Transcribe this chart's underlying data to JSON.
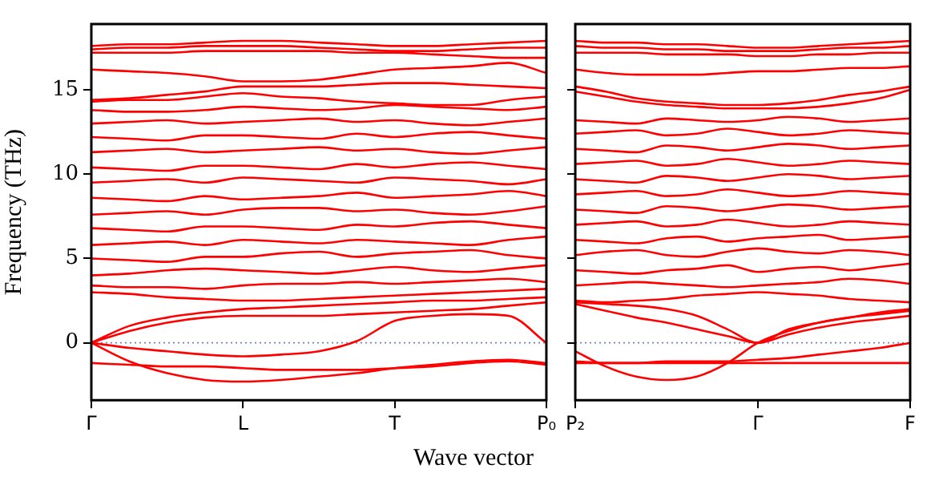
{
  "chart_data": [
    {
      "type": "line",
      "ylabel": "Frequency (THz)",
      "xlabel": "Wave vector",
      "ylim": [
        -3.4,
        18.9
      ],
      "yticks": [
        0,
        5,
        10,
        15
      ],
      "categories": [
        "Γ",
        null,
        null,
        null,
        "L",
        null,
        null,
        null,
        "T",
        null,
        null,
        null,
        "P₀"
      ],
      "grid": false,
      "legend": false,
      "marker": "none",
      "line_style": "solid",
      "ref_lines": [
        {
          "axis": "y",
          "value": 0,
          "color": "#7080c0",
          "line_style": "dotted"
        }
      ],
      "series": [
        {
          "color": "#ff0000",
          "values": [
            0,
            -1.1,
            -1.8,
            -2.2,
            -2.3,
            -2.2,
            -2.0,
            -1.8,
            -1.5,
            -1.3,
            -1.1,
            -1.0,
            -1.2
          ]
        },
        {
          "color": "#ff0000",
          "values": [
            -1.2,
            -1.3,
            -1.4,
            -1.4,
            -1.5,
            -1.6,
            -1.6,
            -1.6,
            -1.5,
            -1.4,
            -1.2,
            -1.1,
            -1.3
          ]
        },
        {
          "color": "#ff0000",
          "values": [
            0,
            -0.3,
            -0.5,
            -0.7,
            -0.8,
            -0.7,
            -0.5,
            0.1,
            1.3,
            1.6,
            1.7,
            1.6,
            0
          ]
        },
        {
          "color": "#ff0000",
          "values": [
            0,
            0.7,
            1.2,
            1.5,
            1.6,
            1.6,
            1.6,
            1.7,
            1.8,
            1.9,
            2.0,
            2.2,
            2.4
          ]
        },
        {
          "color": "#ff0000",
          "values": [
            0,
            1.0,
            1.5,
            1.8,
            2.0,
            2.1,
            2.2,
            2.3,
            2.4,
            2.5,
            2.5,
            2.6,
            2.7
          ]
        },
        {
          "color": "#ff0000",
          "values": [
            3.0,
            2.9,
            2.7,
            2.6,
            2.5,
            2.5,
            2.6,
            2.7,
            2.8,
            2.9,
            3.0,
            3.1,
            3.2
          ]
        },
        {
          "color": "#ff0000",
          "values": [
            3.4,
            3.3,
            3.3,
            3.2,
            3.4,
            3.5,
            3.5,
            3.6,
            3.5,
            3.6,
            3.7,
            3.8,
            3.6
          ]
        },
        {
          "color": "#ff0000",
          "values": [
            4.0,
            4.1,
            4.3,
            4.4,
            4.3,
            4.2,
            4.1,
            4.3,
            4.5,
            4.3,
            4.2,
            4.4,
            4.6
          ]
        },
        {
          "color": "#ff0000",
          "values": [
            5.0,
            4.9,
            4.8,
            5.1,
            5.1,
            5.3,
            5.4,
            5.1,
            5.3,
            5.4,
            5.5,
            5.2,
            5.0
          ]
        },
        {
          "color": "#ff0000",
          "values": [
            5.8,
            5.9,
            6.0,
            5.8,
            6.1,
            6.0,
            5.9,
            6.1,
            6.0,
            5.9,
            5.8,
            6.1,
            6.3
          ]
        },
        {
          "color": "#ff0000",
          "values": [
            6.8,
            6.7,
            6.6,
            6.9,
            6.9,
            6.8,
            6.7,
            7.0,
            6.9,
            7.1,
            7.2,
            7.0,
            6.8
          ]
        },
        {
          "color": "#ff0000",
          "values": [
            7.6,
            7.7,
            7.8,
            7.6,
            7.9,
            8.0,
            8.0,
            7.8,
            7.9,
            7.7,
            7.6,
            7.8,
            8.1
          ]
        },
        {
          "color": "#ff0000",
          "values": [
            8.6,
            8.5,
            8.4,
            8.7,
            8.5,
            8.6,
            8.7,
            8.9,
            8.6,
            8.7,
            8.8,
            9.0,
            8.7
          ]
        },
        {
          "color": "#ff0000",
          "values": [
            9.5,
            9.6,
            9.7,
            9.5,
            9.8,
            9.7,
            9.6,
            9.5,
            9.8,
            9.7,
            9.6,
            9.4,
            9.7
          ]
        },
        {
          "color": "#ff0000",
          "values": [
            10.4,
            10.3,
            10.2,
            10.5,
            10.5,
            10.4,
            10.3,
            10.6,
            10.4,
            10.6,
            10.7,
            10.5,
            10.3
          ]
        },
        {
          "color": "#ff0000",
          "values": [
            11.3,
            11.4,
            11.5,
            11.3,
            11.4,
            11.5,
            11.6,
            11.4,
            11.5,
            11.3,
            11.2,
            11.4,
            11.6
          ]
        },
        {
          "color": "#ff0000",
          "values": [
            12.2,
            12.1,
            12.0,
            12.3,
            12.3,
            12.2,
            12.1,
            12.4,
            12.2,
            12.4,
            12.5,
            12.3,
            12.1
          ]
        },
        {
          "color": "#ff0000",
          "values": [
            13.0,
            13.1,
            13.2,
            13.0,
            13.1,
            13.2,
            13.3,
            13.1,
            13.2,
            13.0,
            12.9,
            13.1,
            13.3
          ]
        },
        {
          "color": "#ff0000",
          "values": [
            13.8,
            13.7,
            13.7,
            13.8,
            14.0,
            13.9,
            13.8,
            13.9,
            14.1,
            14.0,
            13.9,
            13.8,
            14.0
          ]
        },
        {
          "color": "#ff0000",
          "values": [
            14.3,
            14.4,
            14.4,
            14.6,
            14.8,
            14.6,
            14.5,
            14.3,
            14.2,
            14.1,
            14.1,
            14.4,
            14.6
          ]
        },
        {
          "color": "#ff0000",
          "values": [
            14.4,
            14.5,
            14.7,
            14.9,
            15.2,
            15.2,
            15.2,
            15.3,
            15.4,
            15.4,
            15.3,
            15.2,
            15.1
          ]
        },
        {
          "color": "#ff0000",
          "values": [
            16.2,
            16.1,
            16.0,
            15.8,
            15.5,
            15.5,
            15.6,
            15.9,
            16.2,
            16.3,
            16.4,
            16.6,
            16.0
          ]
        },
        {
          "color": "#ff0000",
          "values": [
            17.2,
            17.2,
            17.2,
            17.3,
            17.3,
            17.3,
            17.3,
            17.2,
            17.2,
            17.1,
            17.0,
            16.9,
            16.9
          ]
        },
        {
          "color": "#ff0000",
          "values": [
            17.4,
            17.5,
            17.5,
            17.6,
            17.6,
            17.6,
            17.5,
            17.4,
            17.3,
            17.3,
            17.4,
            17.5,
            17.5
          ]
        },
        {
          "color": "#ff0000",
          "values": [
            17.6,
            17.7,
            17.7,
            17.8,
            17.9,
            17.9,
            17.8,
            17.7,
            17.6,
            17.6,
            17.7,
            17.8,
            17.9
          ]
        }
      ]
    },
    {
      "type": "line",
      "ylim": [
        -3.4,
        18.9
      ],
      "yticks": [
        0,
        5,
        10,
        15
      ],
      "tick_labels": "x",
      "categories": [
        "P₂",
        null,
        null,
        null,
        null,
        null,
        "Γ",
        null,
        null,
        null,
        null,
        "F"
      ],
      "grid": false,
      "legend": false,
      "marker": "none",
      "line_style": "solid",
      "ref_lines": [
        {
          "axis": "y",
          "value": 0,
          "color": "#7080c0",
          "line_style": "dotted"
        }
      ],
      "series": [
        {
          "color": "#ff0000",
          "values": [
            -0.5,
            -1.4,
            -2.0,
            -2.2,
            -2.0,
            -1.2,
            0,
            0.7,
            1.2,
            1.5,
            1.8,
            2.0
          ]
        },
        {
          "color": "#ff0000",
          "values": [
            -1.1,
            -1.2,
            -1.2,
            -1.2,
            -1.2,
            -1.2,
            -1.2,
            -1.2,
            -1.2,
            -1.2,
            -1.2,
            -1.2
          ]
        },
        {
          "color": "#ff0000",
          "values": [
            -1.2,
            -1.2,
            -1.2,
            -1.1,
            -1.1,
            -1.1,
            -1.0,
            -0.9,
            -0.7,
            -0.5,
            -0.3,
            0
          ]
        },
        {
          "color": "#ff0000",
          "values": [
            2.3,
            1.9,
            1.5,
            1.2,
            0.8,
            0.4,
            0,
            0.5,
            0.9,
            1.2,
            1.4,
            1.6
          ]
        },
        {
          "color": "#ff0000",
          "values": [
            2.4,
            2.3,
            2.2,
            2.0,
            1.6,
            0.8,
            0,
            0.8,
            1.2,
            1.5,
            1.7,
            1.9
          ]
        },
        {
          "color": "#ff0000",
          "values": [
            2.5,
            2.4,
            2.5,
            2.6,
            2.8,
            2.9,
            3.0,
            2.9,
            2.8,
            2.6,
            2.5,
            2.4
          ]
        },
        {
          "color": "#ff0000",
          "values": [
            3.4,
            3.5,
            3.6,
            3.5,
            3.4,
            3.3,
            3.4,
            3.5,
            3.6,
            3.8,
            3.7,
            3.5
          ]
        },
        {
          "color": "#ff0000",
          "values": [
            4.3,
            4.2,
            4.1,
            4.3,
            4.4,
            4.6,
            4.2,
            4.4,
            4.5,
            4.3,
            4.5,
            4.7
          ]
        },
        {
          "color": "#ff0000",
          "values": [
            5.2,
            5.4,
            5.5,
            5.2,
            5.1,
            5.4,
            5.6,
            5.4,
            5.3,
            5.5,
            5.4,
            5.2
          ]
        },
        {
          "color": "#ff0000",
          "values": [
            6.1,
            6.0,
            5.9,
            6.2,
            6.3,
            6.0,
            6.2,
            6.3,
            6.4,
            6.1,
            6.2,
            6.3
          ]
        },
        {
          "color": "#ff0000",
          "values": [
            7.0,
            7.1,
            7.2,
            6.9,
            7.0,
            7.3,
            7.1,
            6.9,
            7.0,
            7.2,
            7.1,
            7.0
          ]
        },
        {
          "color": "#ff0000",
          "values": [
            7.9,
            7.8,
            7.7,
            8.1,
            8.0,
            7.8,
            8.0,
            8.2,
            8.1,
            7.9,
            8.0,
            8.1
          ]
        },
        {
          "color": "#ff0000",
          "values": [
            8.8,
            8.9,
            9.0,
            8.7,
            8.8,
            9.1,
            8.9,
            8.7,
            8.8,
            9.0,
            8.9,
            8.8
          ]
        },
        {
          "color": "#ff0000",
          "values": [
            9.7,
            9.6,
            9.5,
            9.9,
            9.8,
            9.6,
            9.8,
            10.0,
            9.9,
            9.7,
            9.8,
            9.9
          ]
        },
        {
          "color": "#ff0000",
          "values": [
            10.6,
            10.7,
            10.8,
            10.5,
            10.6,
            10.9,
            10.7,
            10.5,
            10.6,
            10.8,
            10.7,
            10.6
          ]
        },
        {
          "color": "#ff0000",
          "values": [
            11.5,
            11.4,
            11.3,
            11.7,
            11.6,
            11.4,
            11.6,
            11.8,
            11.7,
            11.5,
            11.6,
            11.7
          ]
        },
        {
          "color": "#ff0000",
          "values": [
            12.4,
            12.5,
            12.6,
            12.3,
            12.4,
            12.7,
            12.5,
            12.3,
            12.4,
            12.6,
            12.5,
            12.4
          ]
        },
        {
          "color": "#ff0000",
          "values": [
            13.2,
            13.1,
            13.0,
            13.3,
            13.2,
            13.1,
            13.2,
            13.4,
            13.3,
            13.1,
            13.2,
            13.3
          ]
        },
        {
          "color": "#ff0000",
          "values": [
            14.9,
            14.6,
            14.3,
            14.1,
            14.0,
            13.9,
            13.9,
            13.9,
            14.0,
            14.2,
            14.5,
            15.0
          ]
        },
        {
          "color": "#ff0000",
          "values": [
            15.2,
            14.9,
            14.5,
            14.3,
            14.2,
            14.1,
            14.1,
            14.2,
            14.4,
            14.7,
            14.9,
            15.2
          ]
        },
        {
          "color": "#ff0000",
          "values": [
            16.2,
            16.0,
            15.9,
            15.9,
            15.9,
            16.0,
            16.1,
            16.1,
            16.2,
            16.3,
            16.3,
            16.4
          ]
        },
        {
          "color": "#ff0000",
          "values": [
            17.2,
            17.2,
            17.2,
            17.1,
            17.1,
            17.1,
            17.0,
            17.0,
            17.1,
            17.1,
            17.2,
            17.2
          ]
        },
        {
          "color": "#ff0000",
          "values": [
            17.6,
            17.5,
            17.5,
            17.4,
            17.4,
            17.3,
            17.3,
            17.3,
            17.4,
            17.5,
            17.5,
            17.6
          ]
        },
        {
          "color": "#ff0000",
          "values": [
            17.9,
            17.8,
            17.8,
            17.7,
            17.7,
            17.6,
            17.5,
            17.5,
            17.6,
            17.7,
            17.8,
            17.9
          ]
        }
      ]
    }
  ]
}
